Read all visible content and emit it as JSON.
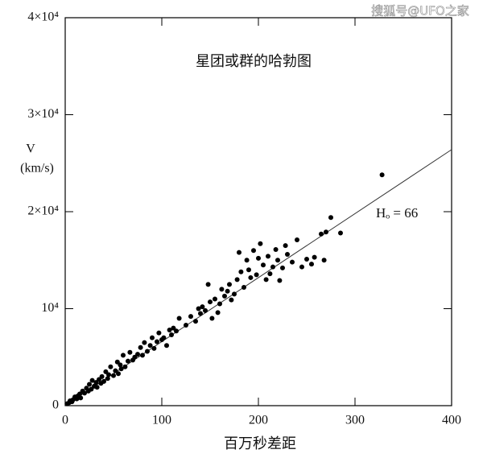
{
  "chart_data": {
    "type": "scatter",
    "title": "星团或群的哈勃图",
    "watermark": "搜狐号@UFO之家",
    "x_label": "百万秒差距",
    "y_label": [
      "V",
      "(km/s)"
    ],
    "annotation": "Hₒ = 66",
    "xlim": [
      0,
      400
    ],
    "xticks": [
      0,
      100,
      200,
      300,
      400
    ],
    "ylim": [
      0,
      40000
    ],
    "yticks": [
      0,
      {
        "value": 10000,
        "label": "10⁴"
      },
      {
        "value": 20000,
        "label": "2×10⁴"
      },
      {
        "value": 30000,
        "label": "3×10⁴"
      },
      {
        "value": 40000,
        "label": "4×10⁴"
      }
    ],
    "color": "#000000",
    "fit_line": {
      "x": [
        0,
        400
      ],
      "y": [
        0,
        26400
      ]
    },
    "x": [
      2,
      4,
      5,
      7,
      8,
      10,
      12,
      13,
      15,
      16,
      18,
      20,
      22,
      24,
      25,
      27,
      28,
      30,
      32,
      33,
      35,
      37,
      38,
      40,
      42,
      44,
      45,
      47,
      50,
      52,
      54,
      55,
      57,
      58,
      60,
      62,
      65,
      67,
      70,
      72,
      75,
      78,
      80,
      82,
      85,
      88,
      90,
      92,
      95,
      97,
      100,
      102,
      105,
      108,
      110,
      112,
      115,
      118,
      125,
      130,
      135,
      138,
      140,
      142,
      145,
      148,
      150,
      152,
      155,
      158,
      160,
      162,
      165,
      168,
      170,
      172,
      175,
      178,
      180,
      182,
      185,
      188,
      190,
      192,
      195,
      198,
      200,
      202,
      205,
      208,
      210,
      212,
      215,
      218,
      220,
      222,
      225,
      228,
      230,
      235,
      240,
      245,
      250,
      255,
      258,
      265,
      268,
      270,
      275,
      285,
      328
    ],
    "values": [
      200,
      300,
      500,
      400,
      600,
      900,
      700,
      1000,
      1200,
      800,
      1500,
      1300,
      1800,
      1500,
      2200,
      1700,
      2600,
      2000,
      2400,
      1900,
      2700,
      2300,
      3000,
      2500,
      3500,
      2800,
      3200,
      4000,
      3100,
      3600,
      4500,
      3300,
      4200,
      3800,
      5200,
      4000,
      4600,
      5500,
      4700,
      5000,
      5300,
      6000,
      5200,
      6500,
      5600,
      6200,
      7000,
      5900,
      6600,
      7500,
      6800,
      7000,
      6200,
      7800,
      7300,
      8000,
      7700,
      9000,
      8300,
      9200,
      8700,
      10000,
      9500,
      10200,
      9800,
      12500,
      10700,
      9000,
      11000,
      9600,
      10500,
      12000,
      11300,
      11800,
      12500,
      10900,
      11500,
      13000,
      15800,
      13800,
      12200,
      15000,
      14000,
      13200,
      16000,
      13500,
      15200,
      16700,
      14500,
      13000,
      15400,
      13600,
      14300,
      16100,
      15000,
      12900,
      14200,
      16500,
      15600,
      14800,
      17100,
      14300,
      15100,
      14600,
      15300,
      17700,
      15000,
      17900,
      19400,
      17800,
      23800
    ]
  }
}
